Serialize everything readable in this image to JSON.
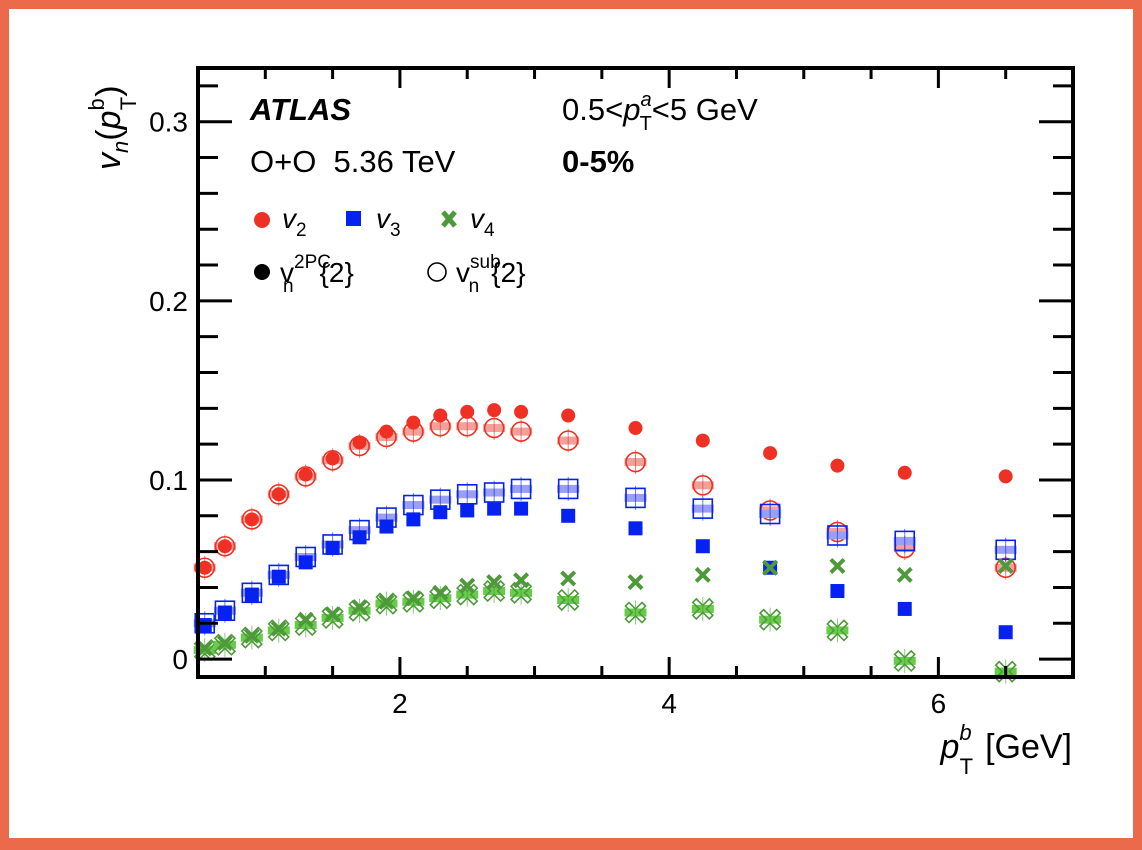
{
  "chart_data": {
    "type": "scatter",
    "title": "",
    "xlabel": {
      "main": "p",
      "sub": "T",
      "sup": "b",
      "unit": "[GeV]"
    },
    "ylabel": {
      "v": "v",
      "n": "n",
      "open": "(",
      "p": "p",
      "sub": "T",
      "sup": "b",
      "close": ")"
    },
    "xlim": [
      0.5,
      7.0
    ],
    "ylim": [
      -0.01,
      0.33
    ],
    "x_ticks": [
      2,
      4,
      6
    ],
    "x_tick_labels": [
      "2",
      "4",
      "6"
    ],
    "y_ticks": [
      0,
      0.1,
      0.2,
      0.3
    ],
    "y_tick_labels": [
      "0",
      "0.1",
      "0.2",
      "0.3"
    ],
    "annotations": {
      "experiment": "ATLAS",
      "system": "O+O  5.36 TeV",
      "pta_range": {
        "pre": "0.5<",
        "p": "p",
        "sub": "T",
        "sup": "a",
        "post": "<5 GeV"
      },
      "centrality": "0-5%"
    },
    "legend": {
      "harmonics": [
        {
          "label": "v",
          "sub": "2",
          "color": "#ee3124"
        },
        {
          "label": "v",
          "sub": "3",
          "color": "#0522f0"
        },
        {
          "label": "v",
          "sub": "4",
          "color": "#4e9a3a"
        }
      ],
      "methods": [
        {
          "label": "v",
          "sub": "n",
          "sup": "2PC",
          "post": "{2}",
          "style": "filled"
        },
        {
          "label": "v",
          "sub": "n",
          "sup": "sub",
          "post": "{2}",
          "style": "open"
        }
      ],
      "placement": "top-left"
    },
    "x": [
      0.55,
      0.7,
      0.9,
      1.1,
      1.3,
      1.5,
      1.7,
      1.9,
      2.1,
      2.3,
      2.5,
      2.7,
      2.9,
      3.25,
      3.75,
      4.25,
      4.75,
      5.25,
      5.75,
      6.5
    ],
    "series": [
      {
        "name": "v2 2PC{2}",
        "harmonic": "v2",
        "style": "filled",
        "color": "#ee3124",
        "values": [
          0.051,
          0.063,
          0.078,
          0.092,
          0.103,
          0.112,
          0.121,
          0.127,
          0.132,
          0.136,
          0.138,
          0.139,
          0.138,
          0.136,
          0.129,
          0.122,
          0.115,
          0.108,
          0.104,
          0.102
        ]
      },
      {
        "name": "v2 sub{2}",
        "harmonic": "v2",
        "style": "open",
        "color": "#ee3124",
        "sys_color": "#f2a09a",
        "values": [
          0.051,
          0.063,
          0.078,
          0.092,
          0.102,
          0.111,
          0.119,
          0.124,
          0.127,
          0.13,
          0.13,
          0.129,
          0.127,
          0.122,
          0.11,
          0.097,
          0.083,
          0.071,
          0.062,
          0.051
        ]
      },
      {
        "name": "v3 2PC{2}",
        "harmonic": "v3",
        "style": "filled",
        "color": "#0522f0",
        "values": [
          0.019,
          0.026,
          0.036,
          0.046,
          0.054,
          0.062,
          0.068,
          0.074,
          0.078,
          0.082,
          0.083,
          0.084,
          0.084,
          0.08,
          0.073,
          0.063,
          0.051,
          0.038,
          0.028,
          0.015
        ]
      },
      {
        "name": "v3 sub{2}",
        "harmonic": "v3",
        "style": "open",
        "color": "#0522f0",
        "sys_color": "#9b9ef5",
        "values": [
          0.02,
          0.027,
          0.037,
          0.047,
          0.057,
          0.064,
          0.072,
          0.079,
          0.086,
          0.089,
          0.092,
          0.093,
          0.095,
          0.095,
          0.09,
          0.084,
          0.081,
          0.069,
          0.066,
          0.061
        ]
      },
      {
        "name": "v4 2PC{2}",
        "harmonic": "v4",
        "style": "filled",
        "color": "#4e9a3a",
        "values": [
          0.006,
          0.009,
          0.013,
          0.017,
          0.022,
          0.025,
          0.029,
          0.032,
          0.034,
          0.037,
          0.041,
          0.043,
          0.044,
          0.045,
          0.043,
          0.047,
          0.051,
          0.052,
          0.047,
          0.052
        ]
      },
      {
        "name": "v4 sub{2}",
        "harmonic": "v4",
        "style": "open",
        "color": "#4e9a3a",
        "sys_color": "#66cc4a",
        "values": [
          0.005,
          0.008,
          0.012,
          0.016,
          0.019,
          0.023,
          0.027,
          0.031,
          0.032,
          0.034,
          0.036,
          0.038,
          0.037,
          0.033,
          0.026,
          0.028,
          0.022,
          0.016,
          -0.001,
          -0.007
        ]
      }
    ]
  }
}
